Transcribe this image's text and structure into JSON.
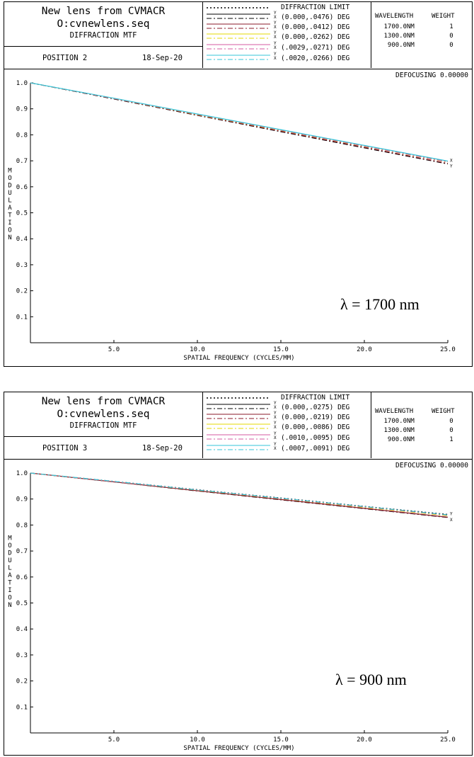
{
  "panels": [
    {
      "title_line1": "New lens from CVMACR",
      "title_line2": "O:cvnewlens.seq",
      "subtitle": "DIFFRACTION MTF",
      "position": "POSITION  2",
      "date": "18-Sep-20",
      "legend": [
        {
          "label": "DIFFRACTION LIMIT",
          "axes": "",
          "color": "#000000"
        },
        {
          "label": "(0.000,.0476) DEG",
          "axes": "Y X",
          "color": "#000000"
        },
        {
          "label": "(0.000,.0412) DEG",
          "axes": "Y X",
          "color": "#8b1a2a"
        },
        {
          "label": "(0.000,.0262) DEG",
          "axes": "Y X",
          "color": "#e6d800"
        },
        {
          "label": "(.0029,.0271) DEG",
          "axes": "Y X",
          "color": "#d45aa0"
        },
        {
          "label": "(.0020,.0266) DEG",
          "axes": "Y X",
          "color": "#35c4d8"
        }
      ],
      "wavelength_header": "WAVELENGTH",
      "weight_header": "WEIGHT",
      "wavelengths": [
        {
          "value": "1700.0",
          "unit": "NM",
          "weight": "1"
        },
        {
          "value": "1300.0",
          "unit": "NM",
          "weight": "0"
        },
        {
          "value": "900.0",
          "unit": "NM",
          "weight": "0"
        }
      ],
      "defocusing": "DEFOCUSING  0.00000",
      "lambda_label": "λ = 1700 nm",
      "end_labels": [
        "X",
        "Y"
      ]
    },
    {
      "title_line1": "New lens from CVMACR",
      "title_line2": "O:cvnewlens.seq",
      "subtitle": "DIFFRACTION MTF",
      "position": "POSITION  3",
      "date": "18-Sep-20",
      "legend": [
        {
          "label": "DIFFRACTION LIMIT",
          "axes": "",
          "color": "#000000"
        },
        {
          "label": "(0.000,.0275) DEG",
          "axes": "Y X",
          "color": "#000000"
        },
        {
          "label": "(0.000,.0219) DEG",
          "axes": "Y X",
          "color": "#8b1a2a"
        },
        {
          "label": "(0.000,.0086) DEG",
          "axes": "Y X",
          "color": "#e6d800"
        },
        {
          "label": "(.0010,.0095) DEG",
          "axes": "Y X",
          "color": "#d45aa0"
        },
        {
          "label": "(.0007,.0091) DEG",
          "axes": "Y X",
          "color": "#35c4d8"
        }
      ],
      "wavelength_header": "WAVELENGTH",
      "weight_header": "WEIGHT",
      "wavelengths": [
        {
          "value": "1700.0",
          "unit": "NM",
          "weight": "0"
        },
        {
          "value": "1300.0",
          "unit": "NM",
          "weight": "0"
        },
        {
          "value": "900.0",
          "unit": "NM",
          "weight": "1"
        }
      ],
      "defocusing": "DEFOCUSING  0.00000",
      "lambda_label": "λ = 900 nm",
      "end_labels": [
        "Y",
        "X"
      ]
    }
  ],
  "chart_data": [
    {
      "type": "line",
      "title": "DIFFRACTION MTF",
      "xlabel": "SPATIAL FREQUENCY (CYCLES/MM)",
      "ylabel": "MODULATION",
      "xlim": [
        0,
        25
      ],
      "ylim": [
        0,
        1.0
      ],
      "xticks": [
        "5.0",
        "10.0",
        "15.0",
        "20.0",
        "25.0"
      ],
      "yticks": [
        "0.1",
        "0.2",
        "0.3",
        "0.4",
        "0.5",
        "0.6",
        "0.7",
        "0.8",
        "0.9",
        "1.0"
      ],
      "x": [
        0,
        5,
        10,
        15,
        20,
        25
      ],
      "series": [
        {
          "name": "DIFFRACTION LIMIT",
          "color": "#000000",
          "dash": "2,3",
          "values": [
            1.0,
            0.94,
            0.879,
            0.818,
            0.758,
            0.697
          ]
        },
        {
          "name": "(0.000,.0476) DEG",
          "color": "#000000",
          "dash": "7,3,2,3",
          "values": [
            1.0,
            0.938,
            0.875,
            0.812,
            0.75,
            0.688
          ]
        },
        {
          "name": "(0.000,.0412) DEG",
          "color": "#8b1a2a",
          "dash": "7,3,2,3",
          "values": [
            1.0,
            0.939,
            0.876,
            0.814,
            0.752,
            0.69
          ]
        },
        {
          "name": "(0.000,.0262) DEG",
          "color": "#e6d800",
          "dash": "7,3,2,3",
          "values": [
            1.0,
            0.94,
            0.878,
            0.817,
            0.756,
            0.695
          ]
        },
        {
          "name": "(.0029,.0271) DEG",
          "color": "#d45aa0",
          "dash": "7,3,2,3",
          "values": [
            1.0,
            0.94,
            0.879,
            0.818,
            0.757,
            0.696
          ]
        },
        {
          "name": "(.0020,.0266) DEG",
          "color": "#35c4d8",
          "dash": "",
          "values": [
            1.0,
            0.941,
            0.88,
            0.82,
            0.759,
            0.699
          ]
        }
      ]
    },
    {
      "type": "line",
      "title": "DIFFRACTION MTF",
      "xlabel": "SPATIAL FREQUENCY (CYCLES/MM)",
      "ylabel": "MODULATION",
      "xlim": [
        0,
        25
      ],
      "ylim": [
        0,
        1.0
      ],
      "xticks": [
        "5.0",
        "10.0",
        "15.0",
        "20.0",
        "25.0"
      ],
      "yticks": [
        "0.1",
        "0.2",
        "0.3",
        "0.4",
        "0.5",
        "0.6",
        "0.7",
        "0.8",
        "0.9",
        "1.0"
      ],
      "x": [
        0,
        5,
        10,
        15,
        20,
        25
      ],
      "series": [
        {
          "name": "DIFFRACTION LIMIT",
          "color": "#000000",
          "dash": "2,3",
          "values": [
            1.0,
            0.968,
            0.936,
            0.904,
            0.872,
            0.841
          ]
        },
        {
          "name": "(0.000,.0275) DEG",
          "color": "#000000",
          "dash": "7,3,2,3",
          "values": [
            1.0,
            0.966,
            0.931,
            0.897,
            0.863,
            0.829
          ]
        },
        {
          "name": "(0.000,.0219) DEG",
          "color": "#8b1a2a",
          "dash": "",
          "values": [
            1.0,
            0.966,
            0.932,
            0.898,
            0.864,
            0.83
          ]
        },
        {
          "name": "(0.000,.0086) DEG",
          "color": "#e6d800",
          "dash": "7,3,2,3",
          "values": [
            1.0,
            0.967,
            0.934,
            0.901,
            0.868,
            0.836
          ]
        },
        {
          "name": "(.0010,.0095) DEG",
          "color": "#d45aa0",
          "dash": "7,3,2,3",
          "values": [
            1.0,
            0.967,
            0.935,
            0.902,
            0.87,
            0.838
          ]
        },
        {
          "name": "(.0007,.0091) DEG",
          "color": "#35c4d8",
          "dash": "7,3,2,3",
          "values": [
            1.0,
            0.968,
            0.935,
            0.903,
            0.871,
            0.839
          ]
        }
      ]
    }
  ]
}
